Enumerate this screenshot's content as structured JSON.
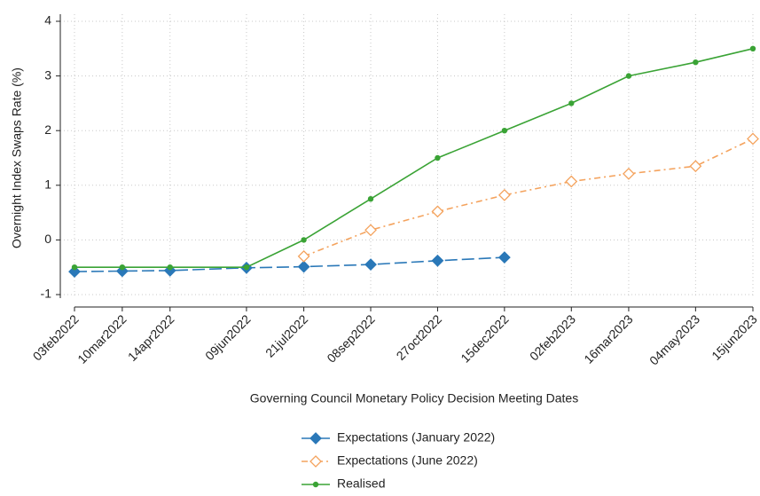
{
  "chart_data": {
    "type": "line",
    "y_label": "Overnight Index Swaps Rate (%)",
    "x_label": "Governing Council Monetary Policy Decision Meeting Dates",
    "x": [
      "03feb2022",
      "10mar2022",
      "14apr2022",
      "09jun2022",
      "21jul2022",
      "08sep2022",
      "27oct2022",
      "15dec2022",
      "02feb2023",
      "16mar2023",
      "04may2023",
      "15jun2023"
    ],
    "series": [
      {
        "name": "Expectations (January 2022)",
        "color": "#2a78b8",
        "marker": "diamond-filled",
        "dash": "long",
        "values": [
          -0.58,
          -0.57,
          -0.56,
          -0.51,
          -0.49,
          -0.45,
          -0.38,
          -0.32,
          null,
          null,
          null,
          null
        ]
      },
      {
        "name": "Expectations (June 2022)",
        "color": "#f4a35e",
        "marker": "diamond-hollow",
        "dash": "dashdot",
        "values": [
          null,
          null,
          null,
          null,
          -0.3,
          0.18,
          0.52,
          0.82,
          1.07,
          1.21,
          1.35,
          1.85
        ]
      },
      {
        "name": "Realised",
        "color": "#3aa335",
        "marker": "circle",
        "dash": "solid",
        "values": [
          -0.5,
          -0.5,
          -0.5,
          -0.5,
          0,
          0.75,
          1.5,
          2.0,
          2.5,
          3.0,
          3.25,
          3.5
        ]
      }
    ],
    "ylim": [
      -1,
      4
    ],
    "yticks": [
      -1,
      0,
      1,
      2,
      3,
      4
    ],
    "grid": true
  }
}
